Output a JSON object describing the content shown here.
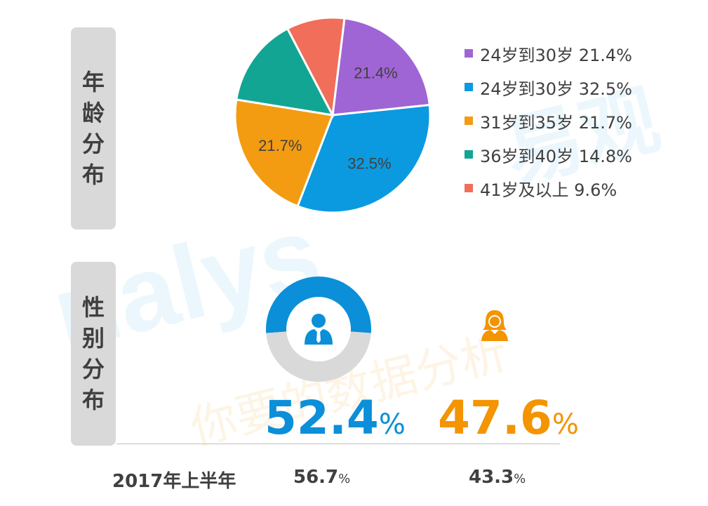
{
  "age_section": {
    "label_chars": [
      "年",
      "龄",
      "分",
      "布"
    ]
  },
  "gender_section": {
    "label_chars": [
      "性",
      "别",
      "分",
      "布"
    ],
    "male": {
      "icon": "male-user-icon",
      "value": "52.4",
      "unit": "%",
      "color": "#0b8fd8"
    },
    "female": {
      "icon": "female-user-icon",
      "value": "47.6",
      "unit": "%",
      "color": "#f39400"
    },
    "previous": {
      "period_label": "2017年上半年",
      "male": {
        "value": "56.7",
        "unit": "%"
      },
      "female": {
        "value": "43.3",
        "unit": "%"
      }
    }
  },
  "watermark": {
    "brand": "nalys",
    "brand_cn": "易观",
    "slogan": "你要的数据分析"
  },
  "chart_data": [
    {
      "type": "pie",
      "title": "",
      "slices": [
        {
          "label": "24岁到30岁",
          "value": 21.4,
          "slice_label": "21.4%",
          "legend_text": "24岁到30岁 21.4%",
          "color": "#a065d4"
        },
        {
          "label": "24岁到30岁",
          "value": 32.5,
          "slice_label": "32.5%",
          "legend_text": "24岁到30岁 32.5%",
          "color": "#0b9ae0"
        },
        {
          "label": "31岁到35岁",
          "value": 21.7,
          "slice_label": "21.7%",
          "legend_text": "31岁到35岁 21.7%",
          "color": "#f39c12"
        },
        {
          "label": "36岁到40岁",
          "value": 14.8,
          "slice_label": "",
          "legend_text": "36岁到40岁 14.8%",
          "color": "#12a594"
        },
        {
          "label": "41岁及以上",
          "value": 9.6,
          "slice_label": "",
          "legend_text": "41岁及以上 9.6%",
          "color": "#f06e5a"
        }
      ],
      "legend_position": "right"
    },
    {
      "type": "pie",
      "title": "",
      "slices": [
        {
          "label": "male",
          "value": 52.4,
          "color": "#0b8fd8"
        },
        {
          "label": "female",
          "value": 47.6,
          "color": "#d9d9d9"
        }
      ]
    }
  ]
}
